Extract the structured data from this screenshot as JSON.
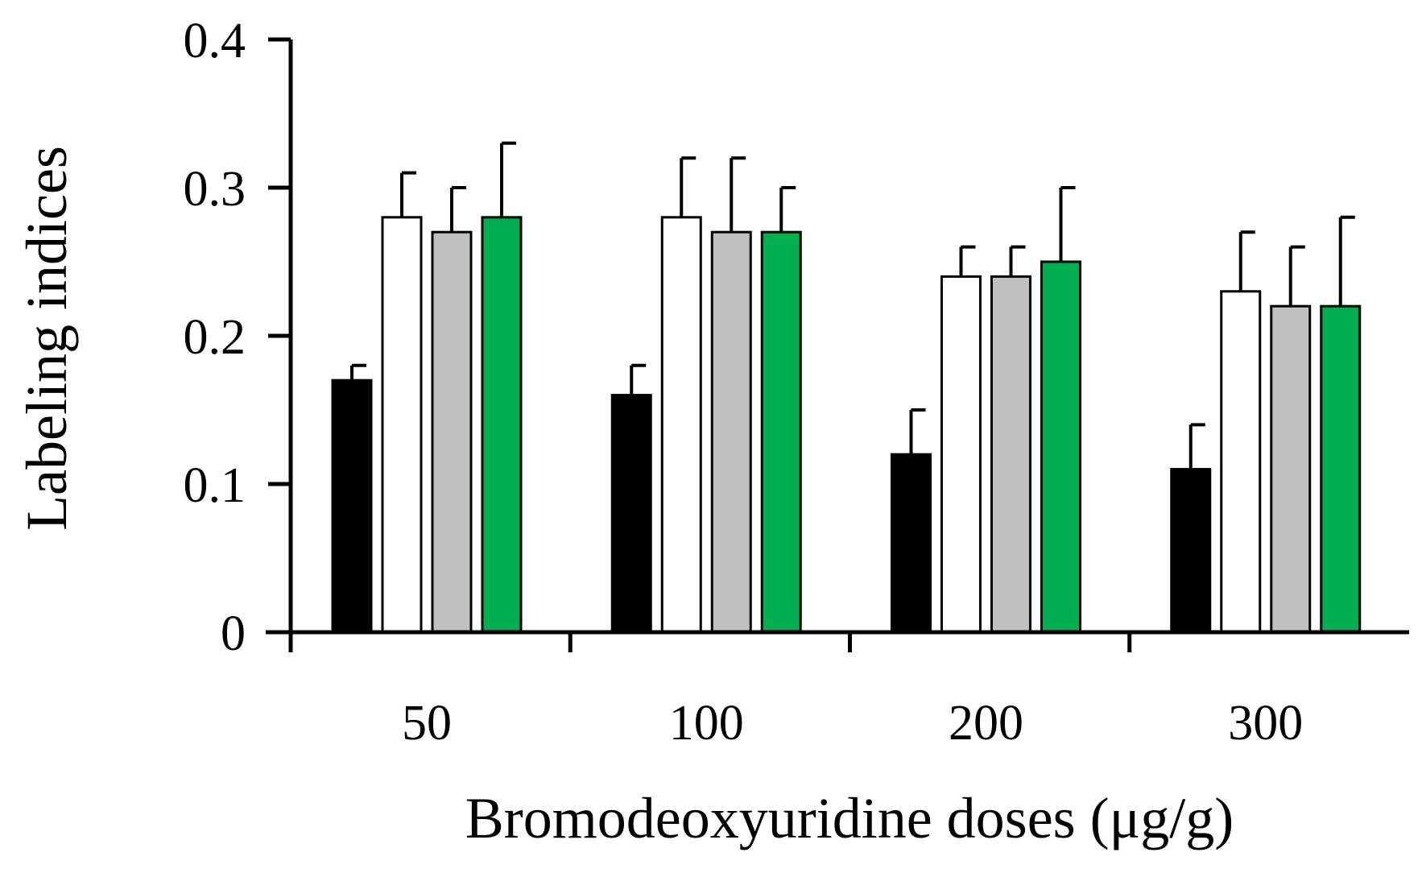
{
  "chart_data": {
    "type": "bar",
    "title": "",
    "xlabel": "Bromodeoxyuridine doses (μg/g)",
    "ylabel": "Labeling indices",
    "categories": [
      "50",
      "100",
      "200",
      "300"
    ],
    "ylim": [
      0,
      0.4
    ],
    "yticks": [
      0,
      0.1,
      0.2,
      0.3,
      0.4
    ],
    "ytick_labels": [
      "0",
      "0.1",
      "0.2",
      "0.3",
      "0.4"
    ],
    "grid": false,
    "legend": "none",
    "error_bars": "upper",
    "series": [
      {
        "color": "#000000",
        "values": [
          0.17,
          0.16,
          0.12,
          0.11
        ],
        "errors": [
          0.01,
          0.02,
          0.03,
          0.03
        ]
      },
      {
        "color": "#ffffff",
        "values": [
          0.28,
          0.28,
          0.24,
          0.23
        ],
        "errors": [
          0.03,
          0.04,
          0.02,
          0.04
        ]
      },
      {
        "color": "#c0c0c0",
        "values": [
          0.27,
          0.27,
          0.24,
          0.22
        ],
        "errors": [
          0.03,
          0.05,
          0.02,
          0.04
        ]
      },
      {
        "color": "#00b050",
        "values": [
          0.28,
          0.27,
          0.25,
          0.22
        ],
        "errors": [
          0.05,
          0.03,
          0.05,
          0.06
        ]
      }
    ]
  }
}
